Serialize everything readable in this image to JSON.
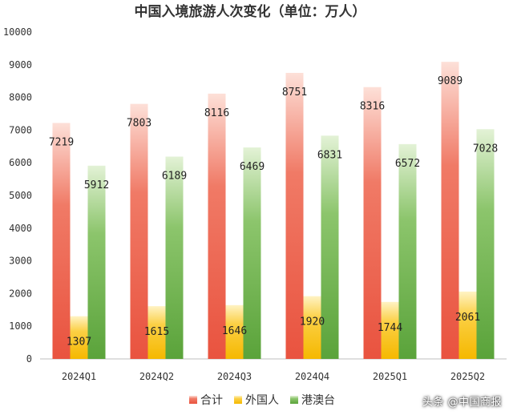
{
  "chart_data": {
    "type": "bar",
    "title": "中国入境旅游人次变化（单位：万人）",
    "categories": [
      "2024Q1",
      "2024Q2",
      "2024Q3",
      "2024Q4",
      "2025Q1",
      "2025Q2"
    ],
    "series": [
      {
        "name": "合计",
        "values": [
          7219,
          7803,
          8116,
          8751,
          8316,
          9089
        ],
        "color": "#e9533f"
      },
      {
        "name": "外国人",
        "values": [
          1307,
          1615,
          1646,
          1920,
          1744,
          2061
        ],
        "color": "#f5b800"
      },
      {
        "name": "港澳台",
        "values": [
          5912,
          6189,
          6469,
          6831,
          6572,
          7028
        ],
        "color": "#5aa33a"
      }
    ],
    "ylim": [
      0,
      10000
    ],
    "yticks": [
      0,
      1000,
      2000,
      3000,
      4000,
      5000,
      6000,
      7000,
      8000,
      9000,
      10000
    ],
    "xlabel": "",
    "ylabel": "",
    "grid": false,
    "legend_position": "bottom"
  },
  "watermark": "头条 @中国商报"
}
